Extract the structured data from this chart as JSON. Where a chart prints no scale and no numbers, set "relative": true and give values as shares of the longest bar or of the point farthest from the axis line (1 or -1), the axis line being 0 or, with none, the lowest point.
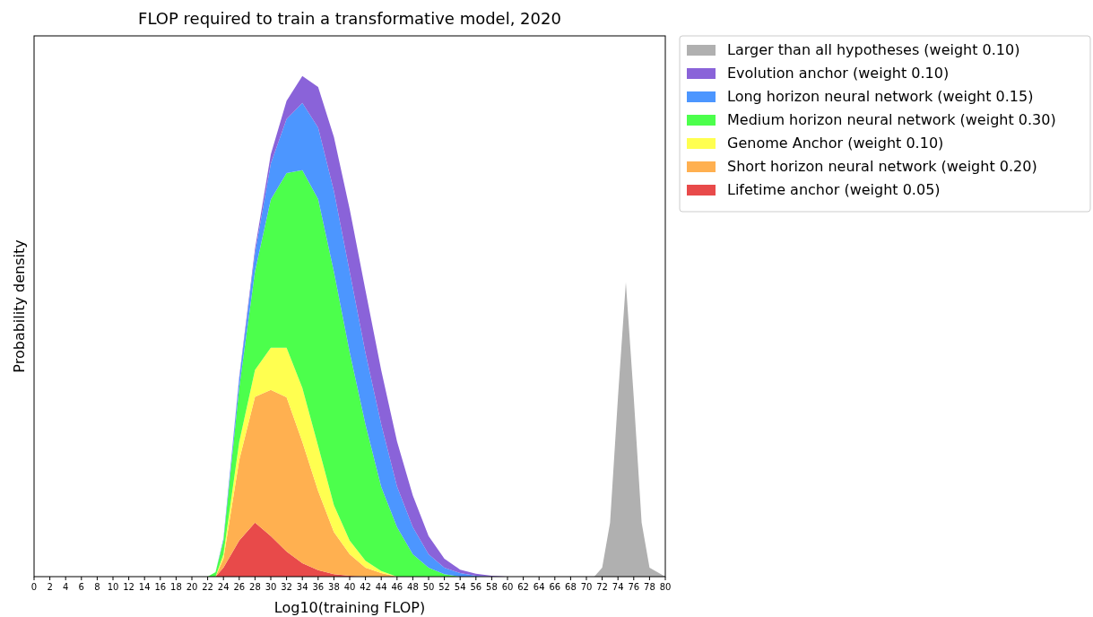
{
  "chart_data": {
    "type": "area",
    "stacked": true,
    "relative": true,
    "title": "FLOP required to train a transformative model, 2020",
    "xlabel": "Log10(training FLOP)",
    "ylabel": "Probability density",
    "legend": "top right",
    "x": [
      22,
      23,
      24,
      26,
      28,
      30,
      32,
      34,
      36,
      38,
      40,
      42,
      44,
      46,
      48,
      50,
      52,
      54,
      56,
      58,
      60,
      62,
      70,
      71,
      72,
      73,
      74,
      75,
      76,
      77,
      78,
      80
    ],
    "xlim": [
      0,
      80
    ],
    "xticks": [
      0,
      2,
      4,
      6,
      8,
      10,
      12,
      14,
      16,
      18,
      20,
      22,
      24,
      26,
      28,
      30,
      32,
      34,
      36,
      38,
      40,
      42,
      44,
      46,
      48,
      50,
      52,
      54,
      56,
      58,
      60,
      62,
      64,
      66,
      68,
      70,
      72,
      74,
      76,
      78,
      80
    ],
    "series": [
      {
        "name": "Lifetime anchor (weight 0.05)",
        "color": "#e84a4a",
        "values": [
          0,
          0,
          0.018,
          0.072,
          0.108,
          0.081,
          0.05,
          0.027,
          0.013,
          0.005,
          0.002,
          0,
          0,
          0,
          0,
          0,
          0,
          0,
          0,
          0,
          0,
          0,
          0,
          0,
          0,
          0,
          0,
          0,
          0,
          0,
          0,
          0
        ]
      },
      {
        "name": "Short horizon neural network (weight 0.20)",
        "color": "#ffb050",
        "values": [
          0,
          0,
          0.018,
          0.161,
          0.251,
          0.292,
          0.308,
          0.242,
          0.158,
          0.084,
          0.043,
          0.018,
          0.007,
          0,
          0,
          0,
          0,
          0,
          0,
          0,
          0,
          0,
          0,
          0,
          0,
          0,
          0,
          0,
          0,
          0,
          0,
          0
        ]
      },
      {
        "name": "Genome Anchor (weight 0.10)",
        "color": "#ffff50",
        "values": [
          0,
          0,
          0.009,
          0.036,
          0.054,
          0.084,
          0.099,
          0.108,
          0.09,
          0.054,
          0.027,
          0.014,
          0.004,
          0,
          0,
          0,
          0,
          0,
          0,
          0,
          0,
          0,
          0,
          0,
          0,
          0,
          0,
          0,
          0,
          0,
          0,
          0
        ]
      },
      {
        "name": "Medium horizon neural network (weight 0.30)",
        "color": "#4cff4c",
        "values": [
          0,
          0.009,
          0.027,
          0.108,
          0.197,
          0.296,
          0.349,
          0.435,
          0.493,
          0.466,
          0.376,
          0.272,
          0.168,
          0.099,
          0.045,
          0.018,
          0.005,
          0,
          0,
          0,
          0,
          0,
          0,
          0,
          0,
          0,
          0,
          0,
          0,
          0,
          0,
          0
        ]
      },
      {
        "name": "Long horizon neural network (weight 0.15)",
        "color": "#4c96ff",
        "values": [
          0,
          0,
          0.004,
          0.018,
          0.036,
          0.072,
          0.108,
          0.134,
          0.143,
          0.161,
          0.161,
          0.143,
          0.125,
          0.081,
          0.054,
          0.027,
          0.013,
          0.007,
          0.002,
          0,
          0,
          0,
          0,
          0,
          0,
          0,
          0,
          0,
          0,
          0,
          0,
          0
        ]
      },
      {
        "name": "Evolution anchor (weight 0.10)",
        "color": "#8a63d9",
        "values": [
          0,
          0,
          0,
          0.004,
          0.009,
          0.018,
          0.036,
          0.054,
          0.081,
          0.108,
          0.125,
          0.125,
          0.108,
          0.09,
          0.063,
          0.036,
          0.018,
          0.007,
          0.004,
          0.002,
          0,
          0,
          0,
          0,
          0,
          0,
          0,
          0,
          0,
          0,
          0,
          0
        ]
      },
      {
        "name": "Larger than all hypotheses (weight 0.10)",
        "color": "#b0b0b0",
        "values": [
          null,
          null,
          null,
          null,
          null,
          null,
          null,
          null,
          null,
          null,
          null,
          null,
          null,
          null,
          null,
          null,
          null,
          null,
          null,
          null,
          null,
          null,
          null,
          0,
          0.018,
          0.108,
          0.358,
          0.588,
          0.358,
          0.108,
          0.018,
          0
        ]
      }
    ]
  }
}
